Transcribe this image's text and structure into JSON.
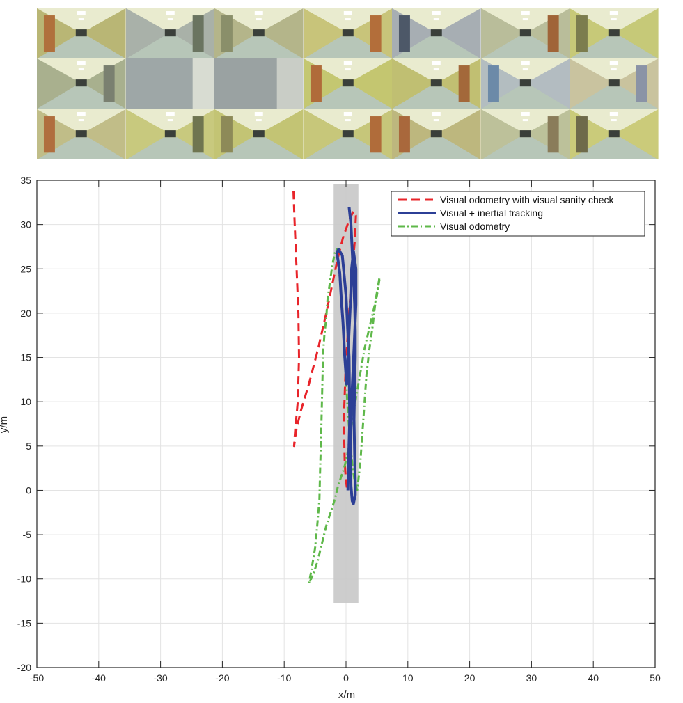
{
  "photos": {
    "rows": 3,
    "cols": 7,
    "thumbnails": [
      {
        "wall": "#b9b675",
        "door": "#b0703c",
        "light": true
      },
      {
        "wall": "#a9b1a8",
        "door": "#6a7460",
        "light": true
      },
      {
        "wall": "#b4b58a",
        "door": "#8a8f6a",
        "light": true
      },
      {
        "wall": "#c8c47a",
        "door": "#b36e3a",
        "light": true
      },
      {
        "wall": "#a7aeb3",
        "door": "#4d5868",
        "light": true
      },
      {
        "wall": "#b9bd9a",
        "door": "#a06438",
        "light": true
      },
      {
        "wall": "#c6c978",
        "door": "#7c7d4e",
        "light": true
      },
      {
        "wall": "#a8b08e",
        "door": "#7a8070",
        "light": true
      },
      {
        "wall": "#9ea7a7",
        "door": "#d8dcd2",
        "light": false
      },
      {
        "wall": "#9aa2a2",
        "door": "#c9cdc6",
        "light": false
      },
      {
        "wall": "#c4c671",
        "door": "#b06b3a",
        "light": true
      },
      {
        "wall": "#c0bf72",
        "door": "#a3683a",
        "light": true
      },
      {
        "wall": "#b3bcc0",
        "door": "#6c8aa8",
        "light": true
      },
      {
        "wall": "#c9c39e",
        "door": "#8a93a6",
        "light": true
      },
      {
        "wall": "#c0bd88",
        "door": "#b06e3e",
        "light": true
      },
      {
        "wall": "#c8c97e",
        "door": "#6f7550",
        "light": true
      },
      {
        "wall": "#c3c474",
        "door": "#8d8a58",
        "light": true
      },
      {
        "wall": "#c6c67a",
        "door": "#b06c3a",
        "light": true
      },
      {
        "wall": "#bdb77e",
        "door": "#a9683c",
        "light": true
      },
      {
        "wall": "#bcc19a",
        "door": "#8a7c5a",
        "light": true
      },
      {
        "wall": "#cacb7a",
        "door": "#6e6a4a",
        "light": true
      }
    ]
  },
  "chart_data": {
    "type": "line",
    "title": "",
    "xlabel": "x/m",
    "ylabel": "y/m",
    "xlim": [
      -50,
      50
    ],
    "ylim": [
      -20,
      35
    ],
    "xticks": [
      -50,
      -40,
      -30,
      -20,
      -10,
      0,
      10,
      20,
      30,
      40,
      50
    ],
    "yticks": [
      -20,
      -15,
      -10,
      -5,
      0,
      5,
      10,
      15,
      20,
      25,
      30,
      35
    ],
    "grid": true,
    "legend_position": "top-right",
    "corridor_band": {
      "x": [
        -2,
        2
      ],
      "y": [
        -12.7,
        34.6
      ],
      "color": "#c8c8c8"
    },
    "series": [
      {
        "name": "Visual odometry with visual sanity check",
        "color": "#e8242a",
        "dash": "dashed",
        "x": [
          -8.5,
          -8.3,
          -8.0,
          -7.7,
          -7.6,
          -7.8,
          -8.2,
          -8.4,
          -8.0,
          -7.3,
          -6.0,
          -4.5,
          -3.2,
          -2.3,
          -1.4,
          -0.5,
          0.5,
          1.2,
          1.6,
          1.4,
          0.8,
          0.3,
          -0.1,
          -0.3,
          -0.3,
          -0.2,
          0.0,
          0.2
        ],
        "y": [
          33.8,
          30.0,
          25.0,
          20.0,
          15.0,
          10.0,
          7.0,
          5.0,
          7.0,
          9.0,
          12.0,
          16.0,
          20.0,
          23.0,
          26.0,
          28.5,
          30.5,
          31.5,
          31.0,
          28.0,
          23.0,
          18.0,
          13.0,
          9.0,
          6.0,
          3.0,
          1.0,
          0.0
        ]
      },
      {
        "name": "Visual + inertial tracking",
        "color": "#2c3f96",
        "dash": "solid",
        "x": [
          0.5,
          0.8,
          1.0,
          1.2,
          1.4,
          1.5,
          1.5,
          1.4,
          1.3,
          1.4,
          1.5,
          1.5,
          1.2,
          1.0,
          0.8,
          0.7,
          0.9,
          1.3,
          1.6,
          1.6,
          1.2,
          0.9,
          0.7,
          0.5,
          0.3,
          0.1,
          -0.2,
          -0.5,
          -0.8,
          -1.0,
          -1.3,
          -1.5,
          -1.2,
          -0.6,
          0.0,
          0.5,
          0.6,
          0.4,
          0.3
        ],
        "y": [
          32.0,
          30.0,
          27.0,
          24.0,
          21.0,
          18.0,
          15.0,
          12.0,
          8.0,
          4.0,
          1.0,
          -0.5,
          -1.5,
          -1.2,
          0.5,
          4.0,
          10.0,
          16.0,
          21.0,
          25.0,
          27.0,
          25.0,
          21.0,
          18.0,
          15.0,
          12.0,
          15.0,
          19.0,
          22.0,
          24.5,
          26.0,
          26.8,
          27.2,
          26.5,
          22.0,
          15.0,
          8.0,
          3.0,
          0.0
        ]
      },
      {
        "name": "Visual odometry",
        "color": "#5fb84a",
        "dash": "dashdot",
        "x": [
          5.4,
          5.0,
          4.5,
          4.0,
          3.5,
          3.0,
          2.5,
          2.0,
          1.5,
          1.0,
          0.6,
          0.2,
          -0.3,
          -0.8,
          -1.3,
          -1.8,
          -2.5,
          -3.2,
          -3.9,
          -4.6,
          -5.3,
          -6.0,
          -5.6,
          -5.0,
          -4.6,
          -4.3,
          -4.2,
          -4.1,
          -4.0,
          -3.9,
          -3.8,
          -3.7,
          -3.5,
          -3.2,
          -3.0,
          -2.6,
          -2.2,
          -1.8,
          -1.5,
          -1.3,
          -1.0,
          -0.6,
          -0.2,
          0.2,
          0.6,
          1.0,
          1.4,
          1.8,
          2.3,
          2.8,
          3.3,
          3.8,
          4.3,
          4.8,
          5.4
        ],
        "y": [
          23.8,
          22.0,
          20.5,
          19.0,
          17.5,
          16.0,
          14.0,
          12.0,
          10.0,
          8.0,
          6.0,
          4.0,
          2.5,
          1.5,
          0.5,
          -1.0,
          -2.5,
          -4.0,
          -6.0,
          -8.0,
          -9.5,
          -10.5,
          -9.0,
          -6.5,
          -3.5,
          -1.0,
          2.0,
          4.5,
          7.0,
          10.0,
          13.0,
          15.5,
          17.5,
          19.5,
          21.5,
          23.5,
          25.5,
          26.8,
          27.2,
          26.0,
          24.0,
          20.0,
          15.0,
          10.0,
          6.0,
          3.0,
          1.0,
          0.0,
          3.0,
          8.0,
          13.0,
          16.0,
          18.5,
          21.5,
          24.0
        ]
      }
    ]
  }
}
